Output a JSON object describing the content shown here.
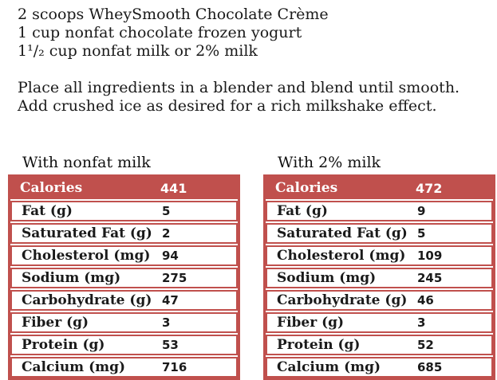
{
  "colors": {
    "accent": "#c0504d",
    "text": "#1a1a1a"
  },
  "recipe": {
    "ingredients": [
      "2 scoops WheySmooth Chocolate Crème",
      "1 cup nonfat chocolate frozen yogurt",
      "1¹/₂ cup nonfat milk or 2% milk"
    ],
    "instructions": [
      "Place all ingredients in a blender and blend until smooth.",
      "Add crushed ice as desired for a rich milkshake effect."
    ]
  },
  "tables": [
    {
      "title": "With nonfat milk",
      "header": {
        "label": "Calories",
        "value": "441"
      },
      "rows": [
        {
          "label": "Fat (g)",
          "value": "5"
        },
        {
          "label": "Saturated Fat (g)",
          "value": "2"
        },
        {
          "label": "Cholesterol (mg)",
          "value": "94"
        },
        {
          "label": "Sodium (mg)",
          "value": "275"
        },
        {
          "label": "Carbohydrate (g)",
          "value": "47"
        },
        {
          "label": "Fiber (g)",
          "value": "3"
        },
        {
          "label": "Protein (g)",
          "value": "53"
        },
        {
          "label": "Calcium (mg)",
          "value": "716"
        }
      ]
    },
    {
      "title": "With 2% milk",
      "header": {
        "label": "Calories",
        "value": "472"
      },
      "rows": [
        {
          "label": "Fat (g)",
          "value": "9"
        },
        {
          "label": "Saturated Fat (g)",
          "value": "5"
        },
        {
          "label": "Cholesterol (mg)",
          "value": "109"
        },
        {
          "label": "Sodium (mg)",
          "value": "245"
        },
        {
          "label": "Carbohydrate (g)",
          "value": "46"
        },
        {
          "label": "Fiber (g)",
          "value": "3"
        },
        {
          "label": "Protein (g)",
          "value": "52"
        },
        {
          "label": "Calcium (mg)",
          "value": "685"
        }
      ]
    }
  ]
}
